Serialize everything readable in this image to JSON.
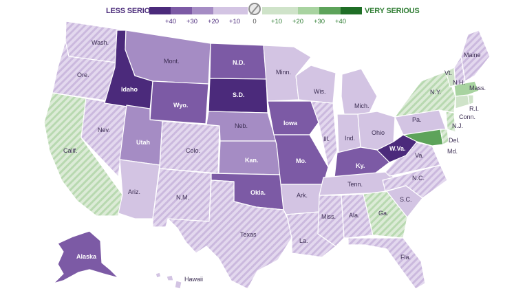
{
  "legend": {
    "less_label": "LESS SERIOUS",
    "very_label": "VERY SERIOUS",
    "ticks": [
      "+40",
      "+30",
      "+20",
      "+10",
      "0",
      "+10",
      "+20",
      "+30",
      "+40"
    ],
    "swatches_less": [
      "#4b2a7b",
      "#7c5aa5",
      "#a58cc4",
      "#d3c4e3"
    ],
    "swatches_very": [
      "#cfe3c9",
      "#a8d3a0",
      "#5da35a",
      "#1f6e26"
    ]
  },
  "colors": {
    "darkest_purple": "#4b2a7b",
    "dark_purple": "#7c5aa5",
    "mid_purple": "#a58cc4",
    "light_purple": "#d3c4e3",
    "light_green": "#cfe3c9",
    "light_green_hatch": "#a8d3a0"
  },
  "states": {
    "wash": "Wash.",
    "ore": "Ore.",
    "calif": "Calif.",
    "nev": "Nev.",
    "idaho": "Idaho",
    "mont": "Mont.",
    "wyo": "Wyo.",
    "utah": "Utah",
    "ariz": "Ariz.",
    "colo": "Colo.",
    "nm": "N.M.",
    "nd": "N.D.",
    "sd": "S.D.",
    "neb": "Neb.",
    "kan": "Kan.",
    "okla": "Okla.",
    "texas": "Texas",
    "minn": "Minn.",
    "iowa": "Iowa",
    "mo": "Mo.",
    "ark": "Ark.",
    "la": "La.",
    "wis": "Wis.",
    "ill": "Ill.",
    "mich": "Mich.",
    "ind": "Ind.",
    "ohio": "Ohio",
    "ky": "Ky.",
    "tenn": "Tenn.",
    "miss": "Miss.",
    "ala": "Ala.",
    "ga": "Ga.",
    "fla": "Fla.",
    "sc": "S.C.",
    "nc": "N.C.",
    "va": "Va.",
    "wva": "W.Va.",
    "pa": "Pa.",
    "ny": "N.Y.",
    "vt": "Vt.",
    "nh": "N.H.",
    "maine": "Maine",
    "mass": "Mass.",
    "ri": "R.I.",
    "conn": "Conn.",
    "nj": "N.J.",
    "del": "Del.",
    "md": "Md.",
    "alaska": "Alaska",
    "hawaii": "Hawaii"
  }
}
